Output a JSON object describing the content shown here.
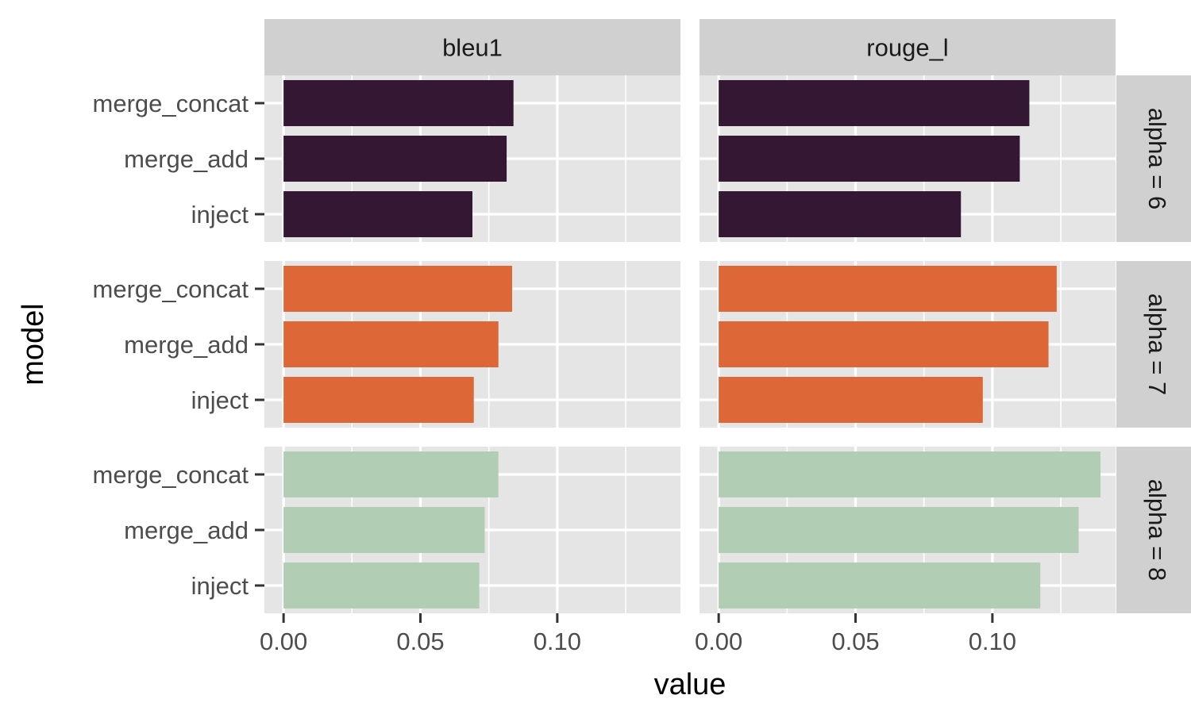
{
  "chart_data": {
    "type": "bar",
    "orientation": "horizontal",
    "facet_columns": [
      "bleu1",
      "rouge_l"
    ],
    "facet_rows": [
      "alpha = 6",
      "alpha = 7",
      "alpha = 8"
    ],
    "categories": [
      "merge_concat",
      "merge_add",
      "inject"
    ],
    "xlabel": "value",
    "ylabel": "model",
    "xlim": [
      -0.007,
      0.145
    ],
    "x_ticks": [
      "0.00",
      "0.05",
      "0.10"
    ],
    "grid": true,
    "legend": "none",
    "panels": [
      {
        "row": "alpha = 6",
        "column": "bleu1",
        "values": [
          0.084,
          0.0815,
          0.069
        ]
      },
      {
        "row": "alpha = 6",
        "column": "rouge_l",
        "values": [
          0.1135,
          0.11,
          0.0885
        ]
      },
      {
        "row": "alpha = 7",
        "column": "bleu1",
        "values": [
          0.0835,
          0.0785,
          0.0695
        ]
      },
      {
        "row": "alpha = 7",
        "column": "rouge_l",
        "values": [
          0.1235,
          0.1205,
          0.0965
        ]
      },
      {
        "row": "alpha = 8",
        "column": "bleu1",
        "values": [
          0.0785,
          0.0735,
          0.0715
        ]
      },
      {
        "row": "alpha = 8",
        "column": "rouge_l",
        "values": [
          0.1395,
          0.1315,
          0.1175
        ]
      }
    ],
    "row_colors": {
      "alpha = 6": "#341732",
      "alpha = 7": "#DD6737",
      "alpha = 8": "#B1CEB4"
    },
    "colors": {
      "panel_background": "#E5E5E5",
      "grid": "#FFFFFF",
      "strip_background": "#D0D0D0",
      "strip_text": "#1A1A1A",
      "tick_text": "#4D4D4D",
      "axis_title": "#000000"
    }
  }
}
